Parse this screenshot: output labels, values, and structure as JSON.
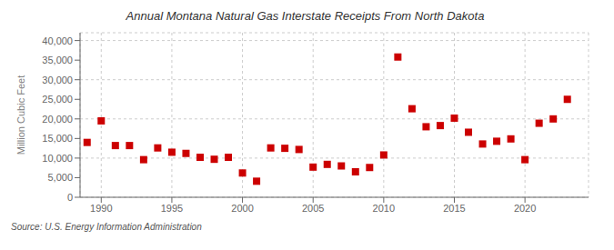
{
  "chart_data": {
    "type": "scatter",
    "title": "Annual Montana Natural Gas Interstate Receipts From North Dakota",
    "ylabel": "Million Cubic Feet",
    "annotations": [
      "Source: U.S. Energy Information Administration"
    ],
    "x": [
      1989,
      1990,
      1991,
      1992,
      1993,
      1994,
      1995,
      1996,
      1997,
      1998,
      1999,
      2000,
      2001,
      2002,
      2003,
      2004,
      2005,
      2006,
      2007,
      2008,
      2009,
      2010,
      2011,
      2012,
      2013,
      2014,
      2015,
      2016,
      2017,
      2018,
      2019,
      2020,
      2021,
      2022,
      2023
    ],
    "values": [
      14000,
      19500,
      13200,
      13200,
      9600,
      12600,
      11500,
      11200,
      10200,
      9700,
      10200,
      6200,
      4100,
      12600,
      12500,
      12200,
      7700,
      8400,
      8000,
      6500,
      7600,
      10800,
      35800,
      22600,
      18000,
      18300,
      20200,
      16600,
      13600,
      14300,
      14900,
      9600,
      18900,
      20000,
      25000
    ],
    "color": "#cc0000",
    "marker": "square",
    "xlim": [
      1988.5,
      2024.5
    ],
    "xticks": [
      1990,
      1995,
      2000,
      2005,
      2010,
      2015,
      2020
    ],
    "ylim": [
      0,
      42000
    ],
    "yticks": [
      0,
      {
        "value": 5000,
        "label": "5,000"
      },
      {
        "value": 10000,
        "label": "10,000"
      },
      {
        "value": 15000,
        "label": "15,000"
      },
      {
        "value": 20000,
        "label": "20,000"
      },
      {
        "value": 25000,
        "label": "25,000"
      },
      {
        "value": 30000,
        "label": "30,000"
      },
      {
        "value": 35000,
        "label": "35,000"
      },
      {
        "value": 40000,
        "label": "40,000"
      }
    ],
    "grid": true
  }
}
